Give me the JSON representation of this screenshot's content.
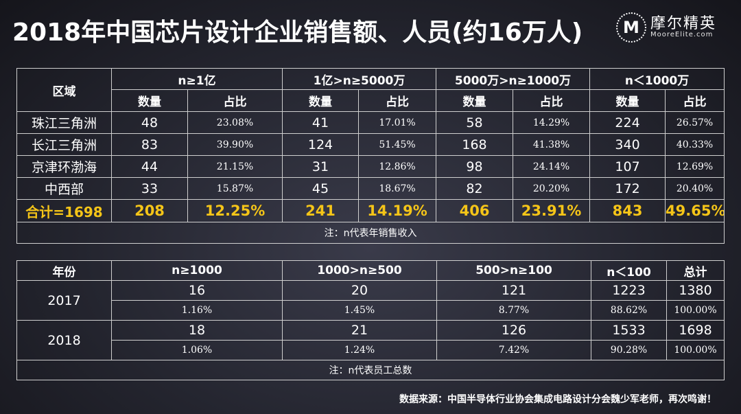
{
  "title": "2018年中国芯片设计企业销售额、人员(约16万人)",
  "logo": {
    "mark": "M",
    "cn": "摩尔精英",
    "en": "MooreElite.com"
  },
  "table1": {
    "region_header": "区域",
    "groups": [
      "n≥1亿",
      "1亿>n≥5000万",
      "5000万>n≥1000万",
      "n＜1000万"
    ],
    "sub_headers": [
      "数量",
      "占比"
    ],
    "rows": [
      {
        "region": "珠江三角洲",
        "cells": [
          "48",
          "23.08%",
          "41",
          "17.01%",
          "58",
          "14.29%",
          "224",
          "26.57%"
        ]
      },
      {
        "region": "长江三角洲",
        "cells": [
          "83",
          "39.90%",
          "124",
          "51.45%",
          "168",
          "41.38%",
          "340",
          "40.33%"
        ]
      },
      {
        "region": "京津环渤海",
        "cells": [
          "44",
          "21.15%",
          "31",
          "12.86%",
          "98",
          "24.14%",
          "107",
          "12.69%"
        ]
      },
      {
        "region": "中西部",
        "cells": [
          "33",
          "15.87%",
          "45",
          "18.67%",
          "82",
          "20.20%",
          "172",
          "20.40%"
        ]
      }
    ],
    "total": {
      "label": "合计=1698",
      "cells": [
        "208",
        "12.25%",
        "241",
        "14.19%",
        "406",
        "23.91%",
        "843",
        "49.65%"
      ]
    },
    "note": "注：n代表年销售收入"
  },
  "table2": {
    "headers": [
      "年份",
      "n≥1000",
      "1000>n≥500",
      "500>n≥100",
      "n＜100",
      "总计"
    ],
    "rows": [
      {
        "year": "2017",
        "counts": [
          "16",
          "20",
          "121",
          "1223",
          "1380"
        ],
        "pcts": [
          "1.16%",
          "1.45%",
          "8.77%",
          "88.62%",
          "100.00%"
        ]
      },
      {
        "year": "2018",
        "counts": [
          "18",
          "21",
          "126",
          "1533",
          "1698"
        ],
        "pcts": [
          "1.06%",
          "1.24%",
          "7.42%",
          "90.28%",
          "100.00%"
        ]
      }
    ],
    "note": "注：n代表员工总数"
  },
  "source": "数据来源：中国半导体行业协会集成电路设计分会魏少军老师，再次鸣谢！",
  "colors": {
    "highlight": "#f5c518",
    "border": "#d0d0d0",
    "text": "#ffffff"
  }
}
